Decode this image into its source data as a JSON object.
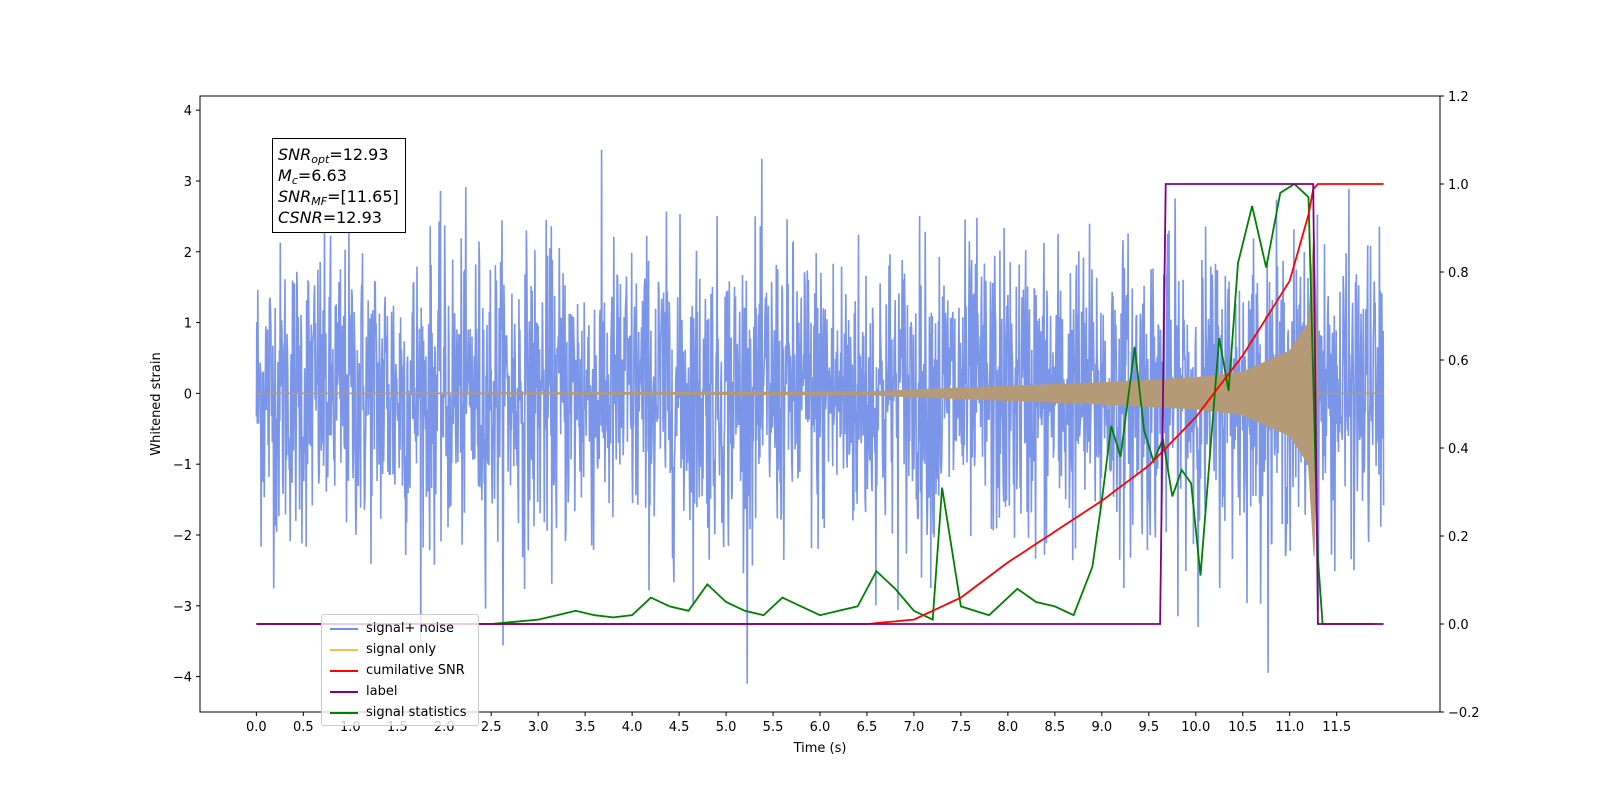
{
  "chart_data": {
    "type": "line",
    "xlabel": "Time (s)",
    "ylabel": "Whitened strain",
    "xlim": [
      -0.6,
      12.6
    ],
    "ylim": [
      -4.5,
      4.2
    ],
    "y2lim": [
      -0.2,
      1.2
    ],
    "x_ticks": [
      "0.0",
      "0.5",
      "1.0",
      "1.5",
      "2.0",
      "2.5",
      "3.0",
      "3.5",
      "4.0",
      "4.5",
      "5.0",
      "5.5",
      "6.0",
      "6.5",
      "7.0",
      "7.5",
      "8.0",
      "8.5",
      "9.0",
      "9.5",
      "10.0",
      "10.5",
      "11.0",
      "11.5"
    ],
    "y_ticks": [
      "4",
      "3",
      "2",
      "1",
      "0",
      "−1",
      "−2",
      "−3",
      "−4"
    ],
    "y2_ticks": [
      "1.2",
      "1.0",
      "0.8",
      "0.6",
      "0.4",
      "0.2",
      "0.0",
      "−0.2"
    ],
    "annotation": {
      "snr_opt_base": "SNR",
      "snr_opt_sub": "opt",
      "snr_opt_value": "=12.93",
      "mc_base": "M",
      "mc_sub": "c",
      "mc_value": "=6.63",
      "snr_mf_base": "SNR",
      "snr_mf_sub": "MF",
      "snr_mf_value": "=[11.65]",
      "csnr_base": "CSNR",
      "csnr_value": "=12.93"
    },
    "legend": [
      {
        "label": "signal+ noise",
        "color": "#6f8ee8"
      },
      {
        "label": "signal only",
        "color": "#ffb84d"
      },
      {
        "label": "cumilative SNR",
        "color": "#ff0000"
      },
      {
        "label": "label",
        "color": "#800080"
      },
      {
        "label": "signal statistics",
        "color": "#008000"
      }
    ],
    "series": [
      {
        "name": "signal+ noise",
        "axis": "left",
        "color": "#7b95e8",
        "description_values": {
          "x_start": 0.0,
          "x_end": 12.0,
          "noise_amplitude_typical": 2.0,
          "min": -4.1,
          "max": 3.8
        }
      },
      {
        "name": "signal only",
        "axis": "left",
        "color": "#b59a78",
        "envelope": {
          "x": [
            0.0,
            6.5,
            7.0,
            8.0,
            9.0,
            10.0,
            10.5,
            11.0,
            11.2,
            11.26,
            11.3,
            12.0
          ],
          "amp": [
            0.0,
            0.02,
            0.05,
            0.1,
            0.15,
            0.22,
            0.3,
            0.6,
            1.0,
            2.3,
            0.0,
            0.0
          ]
        }
      },
      {
        "name": "cumilative SNR",
        "axis": "right",
        "color": "#ff0000",
        "x": [
          0.0,
          6.5,
          7.0,
          7.5,
          8.0,
          8.5,
          9.0,
          9.5,
          10.0,
          10.5,
          11.0,
          11.2,
          11.26,
          12.0
        ],
        "y": [
          0.0,
          0.0,
          0.01,
          0.06,
          0.14,
          0.21,
          0.28,
          0.36,
          0.47,
          0.61,
          0.78,
          0.93,
          1.0,
          1.0
        ]
      },
      {
        "name": "label",
        "axis": "right",
        "color": "#800080",
        "x": [
          0.0,
          9.62,
          9.68,
          11.25,
          11.3,
          12.0
        ],
        "y": [
          0.0,
          0.0,
          1.0,
          1.0,
          0.0,
          0.0
        ]
      },
      {
        "name": "signal statistics",
        "axis": "right",
        "color": "#008000",
        "x": [
          0.0,
          2.5,
          3.0,
          3.2,
          3.4,
          3.6,
          3.8,
          4.0,
          4.2,
          4.4,
          4.6,
          4.8,
          5.0,
          5.2,
          5.4,
          5.6,
          5.8,
          6.0,
          6.2,
          6.4,
          6.6,
          6.8,
          7.0,
          7.2,
          7.3,
          7.5,
          7.8,
          8.1,
          8.3,
          8.5,
          8.7,
          8.9,
          9.0,
          9.1,
          9.2,
          9.35,
          9.45,
          9.55,
          9.65,
          9.75,
          9.85,
          9.95,
          10.05,
          10.15,
          10.25,
          10.35,
          10.45,
          10.6,
          10.75,
          10.9,
          11.05,
          11.2,
          11.3,
          11.35,
          11.4,
          11.9
        ],
        "y": [
          0.0,
          0.0,
          0.01,
          0.02,
          0.03,
          0.02,
          0.015,
          0.02,
          0.06,
          0.04,
          0.03,
          0.09,
          0.05,
          0.03,
          0.02,
          0.06,
          0.04,
          0.02,
          0.03,
          0.04,
          0.12,
          0.08,
          0.03,
          0.01,
          0.31,
          0.04,
          0.02,
          0.08,
          0.05,
          0.04,
          0.02,
          0.13,
          0.28,
          0.45,
          0.38,
          0.63,
          0.44,
          0.37,
          0.42,
          0.29,
          0.35,
          0.32,
          0.11,
          0.38,
          0.65,
          0.53,
          0.82,
          0.95,
          0.81,
          0.98,
          1.0,
          0.97,
          0.15,
          0.0,
          0.0,
          0.0
        ]
      }
    ]
  }
}
